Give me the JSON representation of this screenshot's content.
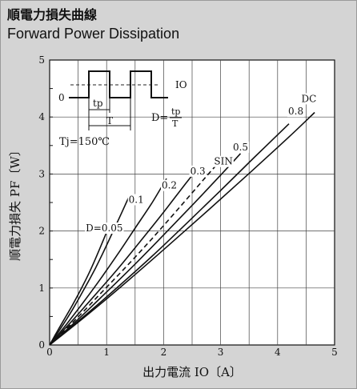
{
  "header": {
    "title_jp": "順電力損失曲線",
    "title_en": "Forward Power Dissipation"
  },
  "chart_data": {
    "type": "line",
    "title": "Forward Power Dissipation",
    "xlabel": "出力電流 IO〔A〕",
    "ylabel": "順電力損失 PF〔W〕",
    "xlim": [
      0,
      5
    ],
    "ylim": [
      0,
      5
    ],
    "x_ticks": [
      "0",
      "1",
      "2",
      "3",
      "4",
      "5"
    ],
    "y_ticks": [
      "0",
      "1",
      "2",
      "3",
      "4",
      "5"
    ],
    "grid": true,
    "condition": "Tj=150℃",
    "inset": {
      "zero_label": "0",
      "io_label": "IO",
      "tp_label": "tp",
      "t_label": "T",
      "duty_label": "D=",
      "duty_num": "tp",
      "duty_den": "T"
    },
    "series": [
      {
        "name": "D=0.05",
        "style": "solid",
        "label_at": [
          0.96,
          2.05
        ],
        "x": [
          0,
          0.1,
          0.25,
          0.4,
          0.55,
          0.7,
          0.85,
          1.0
        ],
        "y": [
          0,
          0.18,
          0.44,
          0.7,
          0.98,
          1.28,
          1.62,
          1.98
        ]
      },
      {
        "name": "0.1",
        "style": "solid",
        "label_at": [
          1.52,
          2.55
        ],
        "x": [
          0,
          0.2,
          0.4,
          0.6,
          0.8,
          1.0,
          1.2,
          1.4
        ],
        "y": [
          0,
          0.3,
          0.62,
          0.97,
          1.34,
          1.75,
          2.18,
          2.62
        ]
      },
      {
        "name": "0.2",
        "style": "solid",
        "label_at": [
          2.1,
          2.8
        ],
        "x": [
          0,
          0.3,
          0.6,
          0.9,
          1.2,
          1.5,
          1.8,
          2.05
        ],
        "y": [
          0,
          0.37,
          0.76,
          1.17,
          1.6,
          2.05,
          2.5,
          2.92
        ]
      },
      {
        "name": "0.3",
        "style": "solid",
        "label_at": [
          2.6,
          3.05
        ],
        "x": [
          0,
          0.4,
          0.8,
          1.2,
          1.6,
          2.0,
          2.4,
          2.58
        ],
        "y": [
          0,
          0.43,
          0.88,
          1.34,
          1.83,
          2.33,
          2.85,
          3.07
        ]
      },
      {
        "name": "SIN",
        "style": "dashed",
        "label_at": [
          3.05,
          3.22
        ],
        "x": [
          0,
          0.45,
          0.9,
          1.35,
          1.8,
          2.25,
          2.7,
          3.05
        ],
        "y": [
          0,
          0.44,
          0.91,
          1.38,
          1.87,
          2.38,
          2.9,
          3.3
        ]
      },
      {
        "name": "0.5",
        "style": "solid",
        "label_at": [
          3.35,
          3.47
        ],
        "x": [
          0,
          0.5,
          1.0,
          1.5,
          2.0,
          2.5,
          3.0,
          3.35
        ],
        "y": [
          0,
          0.45,
          0.93,
          1.42,
          1.93,
          2.45,
          2.98,
          3.36
        ]
      },
      {
        "name": "0.8",
        "style": "solid",
        "label_at": [
          4.32,
          4.1
        ],
        "x": [
          0,
          0.6,
          1.2,
          1.8,
          2.4,
          3.0,
          3.6,
          4.2
        ],
        "y": [
          0,
          0.5,
          1.02,
          1.56,
          2.13,
          2.71,
          3.3,
          3.88
        ]
      },
      {
        "name": "DC",
        "style": "solid",
        "label_at": [
          4.55,
          4.32
        ],
        "x": [
          0,
          0.7,
          1.4,
          2.1,
          2.8,
          3.5,
          4.2,
          4.65
        ],
        "y": [
          0,
          0.56,
          1.15,
          1.76,
          2.38,
          3.01,
          3.65,
          4.08
        ]
      }
    ]
  }
}
